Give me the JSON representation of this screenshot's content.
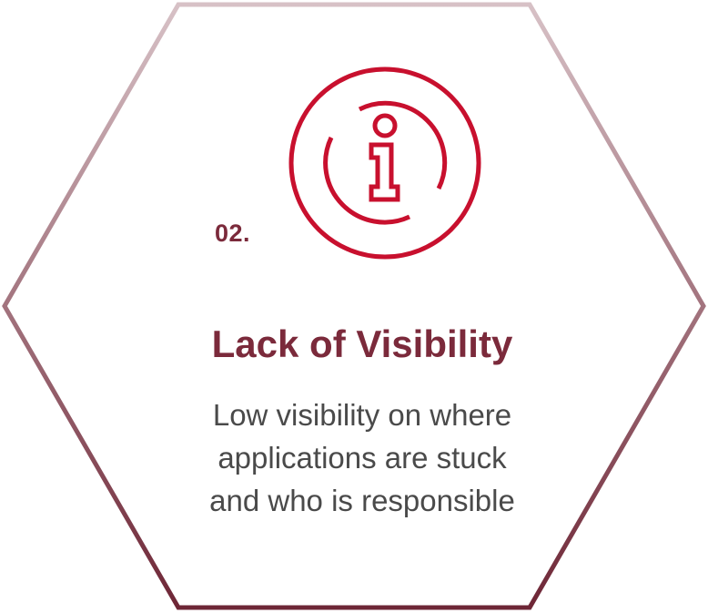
{
  "card": {
    "number": "02.",
    "title": "Lack of Visibility",
    "description_lines": [
      "Low visibility on where",
      "applications are stuck",
      "and who is responsible"
    ],
    "icon": "info-circle-icon"
  },
  "colors": {
    "border_top": "#d7c1c6",
    "border_bottom": "#6e2636",
    "icon_red": "#c8102e",
    "title": "#7b2a3b",
    "number": "#7b2a3b",
    "body_text": "#4a4a4a",
    "background": "#ffffff"
  }
}
